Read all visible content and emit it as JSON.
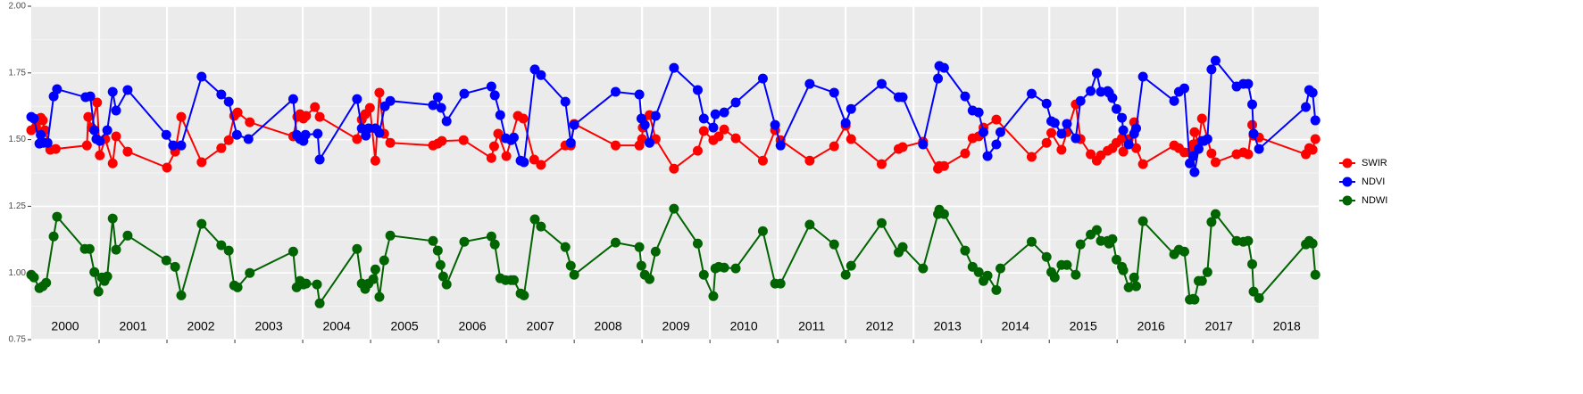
{
  "chart_data": {
    "type": "line",
    "xlim": [
      2000,
      2018.97
    ],
    "xticks": [
      2001,
      2002,
      2003,
      2004,
      2005,
      2006,
      2007,
      2008,
      2009,
      2010,
      2011,
      2012,
      2013,
      2014,
      2015,
      2016,
      2017,
      2018
    ],
    "xtick_labels": false,
    "year_labels": [
      {
        "x": 2000.5,
        "label": "2000"
      },
      {
        "x": 2001.5,
        "label": "2001"
      },
      {
        "x": 2002.5,
        "label": "2002"
      },
      {
        "x": 2003.5,
        "label": "2003"
      },
      {
        "x": 2004.5,
        "label": "2004"
      },
      {
        "x": 2005.5,
        "label": "2005"
      },
      {
        "x": 2006.5,
        "label": "2006"
      },
      {
        "x": 2007.5,
        "label": "2007"
      },
      {
        "x": 2008.5,
        "label": "2008"
      },
      {
        "x": 2009.5,
        "label": "2009"
      },
      {
        "x": 2010.5,
        "label": "2010"
      },
      {
        "x": 2011.5,
        "label": "2011"
      },
      {
        "x": 2012.5,
        "label": "2012"
      },
      {
        "x": 2013.5,
        "label": "2013"
      },
      {
        "x": 2014.5,
        "label": "2014"
      },
      {
        "x": 2015.5,
        "label": "2015"
      },
      {
        "x": 2016.5,
        "label": "2016"
      },
      {
        "x": 2017.5,
        "label": "2017"
      },
      {
        "x": 2018.5,
        "label": "2018"
      }
    ],
    "ylim": [
      0.75,
      2.0
    ],
    "yticks": [
      {
        "value": 0.75,
        "label": "0.75"
      },
      {
        "value": 1.0,
        "label": "1.00"
      },
      {
        "value": 1.25,
        "label": "1.25"
      },
      {
        "value": 1.5,
        "label": "1.50"
      },
      {
        "value": 1.75,
        "label": "1.75"
      },
      {
        "value": 2.0,
        "label": "2.00"
      }
    ],
    "minor_yticks": [
      0.875,
      1.125,
      1.375,
      1.625,
      1.875
    ],
    "grid": true,
    "legend": "right",
    "series": [
      {
        "name": "SWIR",
        "color": "#ff0000",
        "x": [
          2000.0,
          2000.07,
          2000.14,
          2000.17,
          2000.2,
          2000.28,
          2000.36,
          2000.82,
          2000.84,
          2000.89,
          2000.97,
          2001.01,
          2001.09,
          2001.2,
          2001.25,
          2001.42,
          2002.0,
          2002.12,
          2002.21,
          2002.51,
          2002.8,
          2002.91,
          2002.99,
          2003.04,
          2003.22,
          2003.86,
          2003.92,
          2003.96,
          2004.01,
          2004.05,
          2004.18,
          2004.25,
          2004.8,
          2004.87,
          2004.92,
          2004.99,
          2005.07,
          2005.13,
          2005.2,
          2005.29,
          2005.92,
          2005.99,
          2006.05,
          2006.37,
          2006.78,
          2006.82,
          2006.88,
          2007.0,
          2007.17,
          2007.25,
          2007.41,
          2007.51,
          2007.87,
          2007.95,
          2008.0,
          2008.61,
          2008.96,
          2009.0,
          2009.01,
          2009.11,
          2009.2,
          2009.47,
          2009.82,
          2009.91,
          2010.05,
          2010.13,
          2010.21,
          2010.38,
          2010.78,
          2010.96,
          2011.04,
          2011.47,
          2011.83,
          2012.0,
          2012.08,
          2012.53,
          2012.78,
          2012.84,
          2013.14,
          2013.36,
          2013.38,
          2013.45,
          2013.76,
          2013.87,
          2013.96,
          2014.03,
          2014.22,
          2014.74,
          2014.96,
          2015.03,
          2015.18,
          2015.26,
          2015.39,
          2015.46,
          2015.61,
          2015.7,
          2015.76,
          2015.86,
          2015.93,
          2015.99,
          2016.07,
          2016.09,
          2016.17,
          2016.25,
          2016.28,
          2016.38,
          2016.84,
          2016.91,
          2016.99,
          2017.07,
          2017.12,
          2017.14,
          2017.2,
          2017.25,
          2017.39,
          2017.45,
          2017.76,
          2017.86,
          2017.93,
          2017.99,
          2018.01,
          2018.09,
          2018.78,
          2018.83,
          2018.88,
          2018.92
        ],
        "values": [
          1.535,
          1.548,
          1.582,
          1.572,
          1.535,
          1.462,
          1.465,
          1.478,
          1.585,
          1.545,
          1.639,
          1.441,
          1.502,
          1.411,
          1.512,
          1.455,
          1.395,
          1.455,
          1.585,
          1.415,
          1.468,
          1.498,
          1.589,
          1.602,
          1.565,
          1.512,
          1.585,
          1.595,
          1.579,
          1.589,
          1.622,
          1.585,
          1.502,
          1.575,
          1.595,
          1.619,
          1.421,
          1.676,
          1.522,
          1.488,
          1.478,
          1.485,
          1.495,
          1.498,
          1.431,
          1.475,
          1.522,
          1.438,
          1.589,
          1.579,
          1.425,
          1.405,
          1.478,
          1.478,
          1.559,
          1.478,
          1.478,
          1.502,
          1.545,
          1.592,
          1.502,
          1.391,
          1.458,
          1.532,
          1.498,
          1.512,
          1.538,
          1.505,
          1.421,
          1.535,
          1.498,
          1.421,
          1.475,
          1.552,
          1.502,
          1.408,
          1.465,
          1.472,
          1.492,
          1.391,
          1.401,
          1.401,
          1.448,
          1.505,
          1.512,
          1.545,
          1.575,
          1.435,
          1.488,
          1.525,
          1.462,
          1.528,
          1.632,
          1.502,
          1.445,
          1.421,
          1.441,
          1.458,
          1.468,
          1.488,
          1.505,
          1.455,
          1.502,
          1.565,
          1.468,
          1.408,
          1.478,
          1.468,
          1.452,
          1.452,
          1.482,
          1.528,
          1.488,
          1.579,
          1.448,
          1.415,
          1.445,
          1.452,
          1.445,
          1.555,
          1.515,
          1.508,
          1.445,
          1.468,
          1.462,
          1.502
        ]
      },
      {
        "name": "NDVI",
        "color": "#0000ff",
        "x": [
          2000.0,
          2000.04,
          2000.12,
          2000.14,
          2000.18,
          2000.24,
          2000.33,
          2000.38,
          2000.8,
          2000.87,
          2000.93,
          2000.96,
          2001.01,
          2001.12,
          2001.2,
          2001.25,
          2001.42,
          2001.99,
          2002.09,
          2002.21,
          2002.51,
          2002.8,
          2002.91,
          2003.03,
          2003.2,
          2003.86,
          2003.91,
          2003.96,
          2004.01,
          2004.04,
          2004.22,
          2004.25,
          2004.8,
          2004.87,
          2004.93,
          2004.97,
          2005.07,
          2005.13,
          2005.21,
          2005.29,
          2005.92,
          2005.99,
          2006.04,
          2006.12,
          2006.38,
          2006.78,
          2006.83,
          2006.91,
          2006.99,
          2007.07,
          2007.11,
          2007.21,
          2007.26,
          2007.42,
          2007.51,
          2007.87,
          2007.95,
          2008.0,
          2008.61,
          2008.96,
          2008.99,
          2009.04,
          2009.11,
          2009.2,
          2009.47,
          2009.82,
          2009.91,
          2010.05,
          2010.08,
          2010.21,
          2010.38,
          2010.78,
          2010.96,
          2011.04,
          2011.47,
          2011.83,
          2012.0,
          2012.08,
          2012.53,
          2012.78,
          2012.84,
          2013.14,
          2013.36,
          2013.38,
          2013.45,
          2013.76,
          2013.87,
          2013.96,
          2014.03,
          2014.09,
          2014.22,
          2014.28,
          2014.74,
          2014.96,
          2015.03,
          2015.08,
          2015.18,
          2015.26,
          2015.39,
          2015.46,
          2015.61,
          2015.7,
          2015.76,
          2015.86,
          2015.88,
          2015.93,
          2015.99,
          2016.07,
          2016.09,
          2016.17,
          2016.25,
          2016.28,
          2016.38,
          2016.84,
          2016.91,
          2016.99,
          2017.07,
          2017.12,
          2017.14,
          2017.2,
          2017.25,
          2017.28,
          2017.33,
          2017.39,
          2017.45,
          2017.76,
          2017.86,
          2017.93,
          2017.99,
          2018.01,
          2018.09,
          2018.78,
          2018.83,
          2018.88,
          2018.92
        ],
        "values": [
          1.585,
          1.579,
          1.485,
          1.518,
          1.488,
          1.488,
          1.662,
          1.689,
          1.659,
          1.662,
          1.535,
          1.502,
          1.495,
          1.535,
          1.679,
          1.609,
          1.686,
          1.518,
          1.478,
          1.478,
          1.736,
          1.669,
          1.642,
          1.518,
          1.502,
          1.652,
          1.518,
          1.502,
          1.495,
          1.518,
          1.522,
          1.425,
          1.652,
          1.542,
          1.515,
          1.542,
          1.542,
          1.525,
          1.625,
          1.645,
          1.629,
          1.659,
          1.619,
          1.569,
          1.672,
          1.699,
          1.666,
          1.592,
          1.505,
          1.498,
          1.508,
          1.421,
          1.415,
          1.763,
          1.742,
          1.642,
          1.488,
          1.555,
          1.679,
          1.669,
          1.579,
          1.555,
          1.488,
          1.589,
          1.769,
          1.686,
          1.579,
          1.545,
          1.595,
          1.602,
          1.639,
          1.729,
          1.555,
          1.478,
          1.709,
          1.676,
          1.562,
          1.615,
          1.709,
          1.659,
          1.659,
          1.482,
          1.729,
          1.776,
          1.769,
          1.662,
          1.609,
          1.602,
          1.528,
          1.438,
          1.482,
          1.528,
          1.672,
          1.635,
          1.569,
          1.562,
          1.522,
          1.559,
          1.505,
          1.645,
          1.682,
          1.749,
          1.679,
          1.682,
          1.676,
          1.656,
          1.615,
          1.582,
          1.535,
          1.482,
          1.522,
          1.542,
          1.736,
          1.645,
          1.679,
          1.692,
          1.411,
          1.438,
          1.378,
          1.465,
          1.495,
          1.495,
          1.502,
          1.763,
          1.796,
          1.699,
          1.709,
          1.709,
          1.632,
          1.522,
          1.465,
          1.622,
          1.686,
          1.676,
          1.572
        ]
      },
      {
        "name": "NDWI",
        "color": "#006400",
        "x": [
          2000.0,
          2000.04,
          2000.12,
          2000.17,
          2000.22,
          2000.33,
          2000.38,
          2000.79,
          2000.86,
          2000.93,
          2000.99,
          2001.04,
          2001.08,
          2001.12,
          2001.2,
          2001.25,
          2001.42,
          2001.99,
          2002.12,
          2002.21,
          2002.51,
          2002.8,
          2002.91,
          2002.99,
          2003.04,
          2003.22,
          2003.86,
          2003.91,
          2003.96,
          2004.01,
          2004.05,
          2004.21,
          2004.25,
          2004.8,
          2004.87,
          2004.92,
          2004.97,
          2005.04,
          2005.07,
          2005.13,
          2005.2,
          2005.29,
          2005.92,
          2005.99,
          2006.03,
          2006.07,
          2006.12,
          2006.38,
          2006.78,
          2006.83,
          2006.91,
          2006.99,
          2007.07,
          2007.11,
          2007.21,
          2007.26,
          2007.42,
          2007.51,
          2007.87,
          2007.95,
          2008.0,
          2008.61,
          2008.96,
          2008.99,
          2009.04,
          2009.11,
          2009.2,
          2009.47,
          2009.82,
          2009.91,
          2010.05,
          2010.08,
          2010.13,
          2010.21,
          2010.38,
          2010.78,
          2010.96,
          2011.04,
          2011.47,
          2011.83,
          2012.0,
          2012.08,
          2012.53,
          2012.78,
          2012.84,
          2013.14,
          2013.36,
          2013.38,
          2013.45,
          2013.76,
          2013.87,
          2013.96,
          2014.03,
          2014.09,
          2014.22,
          2014.28,
          2014.74,
          2014.96,
          2015.03,
          2015.08,
          2015.18,
          2015.26,
          2015.39,
          2015.46,
          2015.61,
          2015.7,
          2015.76,
          2015.86,
          2015.88,
          2015.93,
          2015.99,
          2016.07,
          2016.09,
          2016.17,
          2016.25,
          2016.28,
          2016.38,
          2016.84,
          2016.91,
          2016.99,
          2017.07,
          2017.12,
          2017.14,
          2017.2,
          2017.25,
          2017.33,
          2017.39,
          2017.45,
          2017.76,
          2017.86,
          2017.93,
          2017.99,
          2018.01,
          2018.09,
          2018.78,
          2018.83,
          2018.88,
          2018.92
        ],
        "values": [
          0.993,
          0.983,
          0.943,
          0.95,
          0.963,
          1.137,
          1.211,
          1.09,
          1.09,
          1.003,
          0.93,
          0.983,
          0.97,
          0.987,
          1.204,
          1.087,
          1.14,
          1.047,
          1.023,
          0.916,
          1.184,
          1.104,
          1.084,
          0.953,
          0.946,
          1.0,
          1.08,
          0.946,
          0.97,
          0.957,
          0.96,
          0.957,
          0.886,
          1.09,
          0.96,
          0.94,
          0.96,
          0.977,
          1.013,
          0.91,
          1.047,
          1.14,
          1.12,
          1.084,
          1.03,
          0.987,
          0.957,
          1.117,
          1.137,
          1.107,
          0.98,
          0.973,
          0.973,
          0.973,
          0.923,
          0.916,
          1.201,
          1.174,
          1.097,
          1.027,
          0.993,
          1.114,
          1.097,
          1.027,
          0.993,
          0.977,
          1.08,
          1.241,
          1.11,
          0.993,
          0.913,
          1.017,
          1.023,
          1.02,
          1.017,
          1.157,
          0.96,
          0.96,
          1.181,
          1.107,
          0.993,
          1.027,
          1.187,
          1.077,
          1.097,
          1.017,
          1.221,
          1.237,
          1.221,
          1.084,
          1.023,
          1.003,
          0.97,
          0.99,
          0.936,
          1.017,
          1.117,
          1.06,
          1.003,
          0.983,
          1.03,
          1.03,
          0.993,
          1.107,
          1.144,
          1.161,
          1.12,
          1.12,
          1.11,
          1.127,
          1.05,
          1.023,
          1.01,
          0.946,
          0.983,
          0.95,
          1.194,
          1.07,
          1.087,
          1.08,
          0.9,
          0.903,
          0.9,
          0.97,
          0.97,
          1.003,
          1.191,
          1.221,
          1.12,
          1.117,
          1.12,
          1.033,
          0.93,
          0.906,
          1.107,
          1.12,
          1.11,
          0.993
        ]
      }
    ]
  }
}
